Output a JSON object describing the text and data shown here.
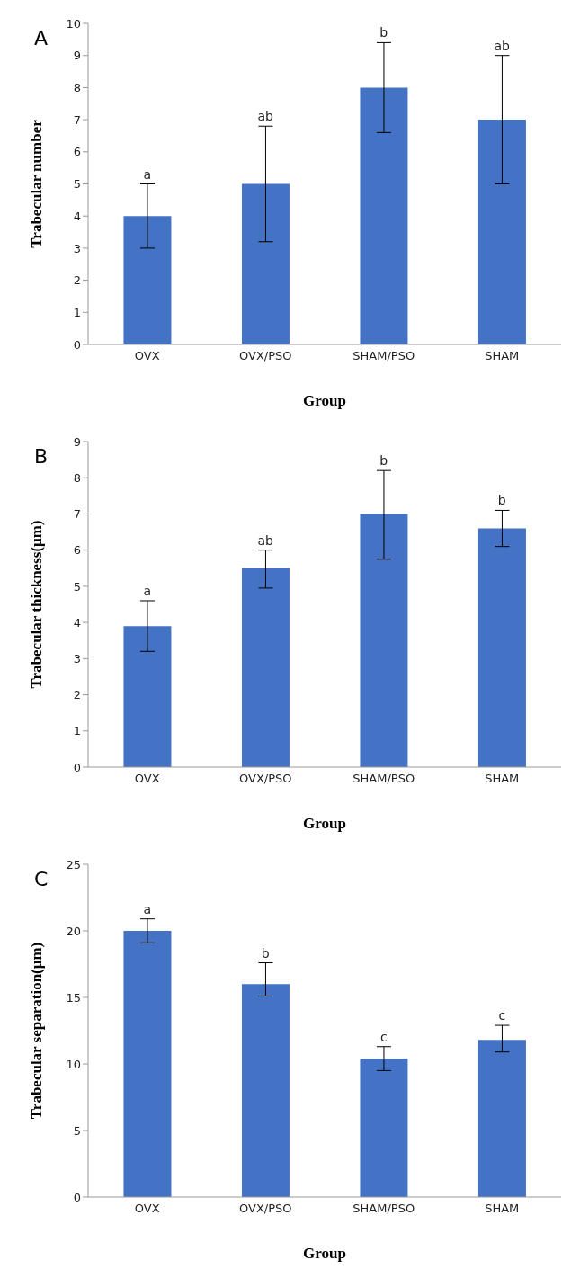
{
  "chart_data": [
    {
      "type": "bar",
      "annotations": [
        "A",
        {
          "text": "a",
          "x": "OVX",
          "y": 5
        },
        {
          "text": "ab",
          "x": "OVX/PSO",
          "y": 6.8
        },
        {
          "text": "b",
          "x": "SHAM/PSO",
          "y": 9.4
        },
        {
          "text": "ab",
          "x": "SHAM",
          "y": 9
        }
      ],
      "xlabel": "Group",
      "ylabel": "Trabecular  number",
      "categories": [
        "OVX",
        "OVX/PSO",
        "SHAM/PSO",
        "SHAM"
      ],
      "values": [
        4,
        5,
        8,
        7
      ],
      "errors": [
        [
          3,
          5
        ],
        [
          3.2,
          6.8
        ],
        [
          6.6,
          9.4
        ],
        [
          5,
          9
        ]
      ],
      "color": "#4472c4",
      "ylim": [
        0,
        10
      ],
      "yticks": [
        0,
        1,
        2,
        3,
        4,
        5,
        6,
        7,
        8,
        9,
        10
      ],
      "grid": false,
      "legend": false
    },
    {
      "type": "bar",
      "annotations": [
        "B",
        {
          "text": "a",
          "x": "OVX",
          "y": 4.6
        },
        {
          "text": "ab",
          "x": "OVX/PSO",
          "y": 6.0
        },
        {
          "text": "b",
          "x": "SHAM/PSO",
          "y": 8.2
        },
        {
          "text": "b",
          "x": "SHAM",
          "y": 7.1
        }
      ],
      "xlabel": "Group",
      "ylabel": "Trabecular  thickness(μm)",
      "categories": [
        "OVX",
        "OVX/PSO",
        "SHAM/PSO",
        "SHAM"
      ],
      "values": [
        3.9,
        5.5,
        7.0,
        6.6
      ],
      "errors": [
        [
          3.2,
          4.6
        ],
        [
          4.95,
          6.0
        ],
        [
          5.75,
          8.2
        ],
        [
          6.1,
          7.1
        ]
      ],
      "color": "#4472c4",
      "ylim": [
        0,
        9
      ],
      "yticks": [
        0,
        1,
        2,
        3,
        4,
        5,
        6,
        7,
        8,
        9
      ],
      "grid": false,
      "legend": false
    },
    {
      "type": "bar",
      "annotations": [
        "C",
        {
          "text": "a",
          "x": "OVX",
          "y": 20.9
        },
        {
          "text": "b",
          "x": "OVX/PSO",
          "y": 17.6
        },
        {
          "text": "c",
          "x": "SHAM/PSO",
          "y": 11.3
        },
        {
          "text": "c",
          "x": "SHAM",
          "y": 12.9
        }
      ],
      "xlabel": "Group",
      "ylabel": "Trabecular  separation(μm)",
      "categories": [
        "OVX",
        "OVX/PSO",
        "SHAM/PSO",
        "SHAM"
      ],
      "values": [
        20,
        16,
        10.4,
        11.8
      ],
      "errors": [
        [
          19.1,
          20.9
        ],
        [
          15.1,
          17.6
        ],
        [
          9.5,
          11.3
        ],
        [
          10.9,
          12.9
        ]
      ],
      "color": "#4472c4",
      "ylim": [
        0,
        25
      ],
      "yticks": [
        0,
        5,
        10,
        15,
        20,
        25
      ],
      "grid": false,
      "legend": false
    }
  ]
}
